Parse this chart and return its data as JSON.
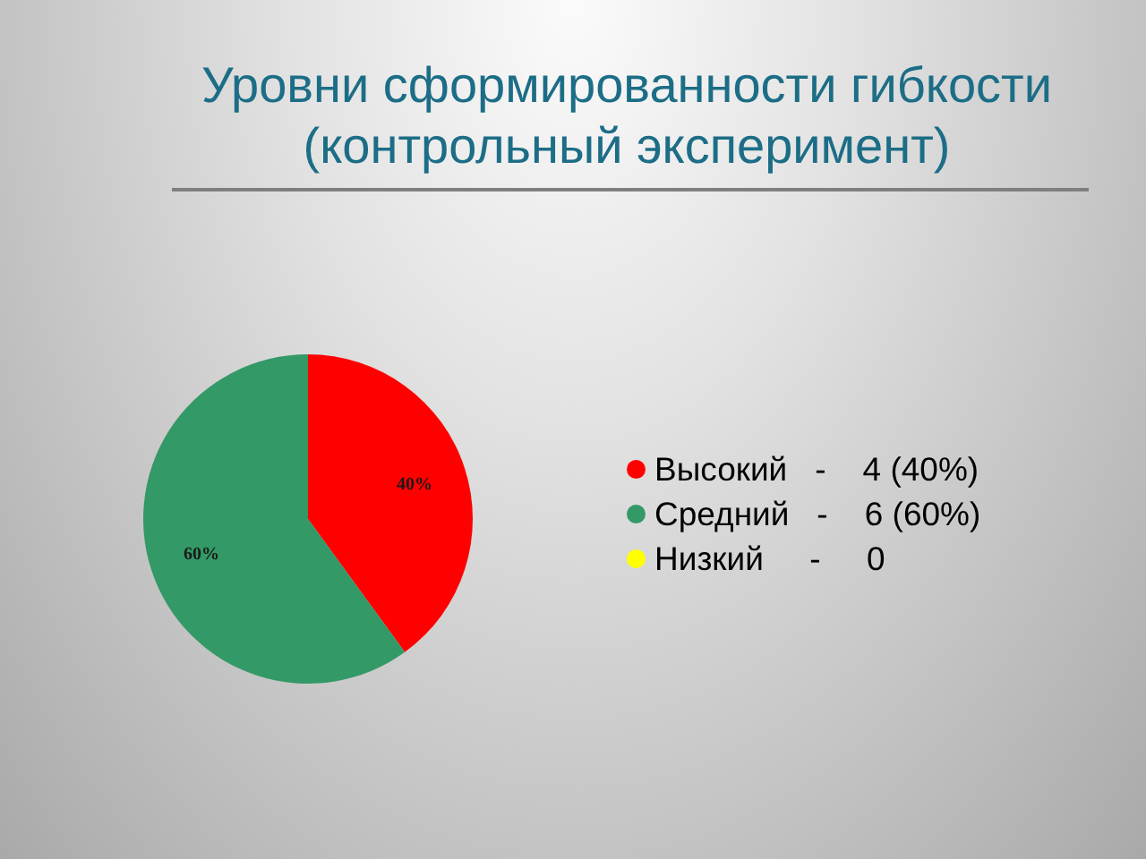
{
  "chart_data": {
    "type": "pie",
    "title": "Уровни сформированности гибкости\n(контрольный эксперимент)",
    "categories": [
      "Высокий   -    4 (40%)",
      "Средний   -    6 (60%)",
      "Низкий     -     0"
    ],
    "values": [
      40,
      60,
      0
    ],
    "colors": [
      "#ff0000",
      "#339966",
      "#ffff00"
    ],
    "value_labels": [
      "40%",
      "60%",
      null
    ],
    "legend": "right"
  }
}
